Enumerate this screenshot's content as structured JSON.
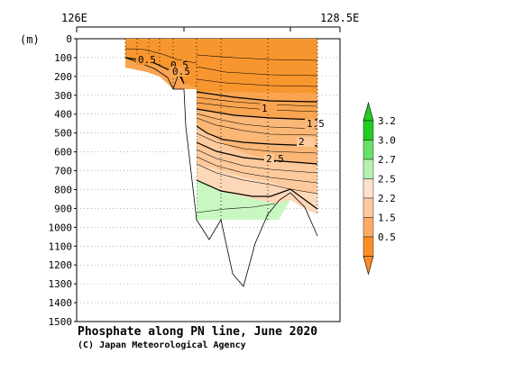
{
  "chart_data": {
    "type": "contour",
    "title": "Phosphate along PN line, June 2020",
    "credit": "(C) Japan Meteorological Agency",
    "xlabel_left": "126E",
    "xlabel_right": "128.5E",
    "ylabel": "(m)",
    "ylim": [
      0,
      1500
    ],
    "yticks": [
      "0",
      "100",
      "200",
      "300",
      "400",
      "500",
      "600",
      "700",
      "800",
      "900",
      "1000",
      "1100",
      "1200",
      "1300",
      "1400",
      "1500"
    ],
    "contour_labels": [
      "0.5",
      "0.5",
      "0.5",
      "1",
      "1.5",
      "2",
      "2.5"
    ],
    "colorbar": {
      "labels": [
        "3.2",
        "3.0",
        "2.7",
        "2.5",
        "2.2",
        "1.5",
        "0.5"
      ],
      "colors": [
        "#22cc22",
        "#66e066",
        "#b7f2b0",
        "#ffe0cc",
        "#ffc8a0",
        "#ffaa66",
        "#ff8c28"
      ]
    },
    "colors": {
      "surface": "#f7962f",
      "mid": "#fbbf85",
      "deep": "#fdd3b2",
      "green": "#c9f7c2"
    }
  }
}
